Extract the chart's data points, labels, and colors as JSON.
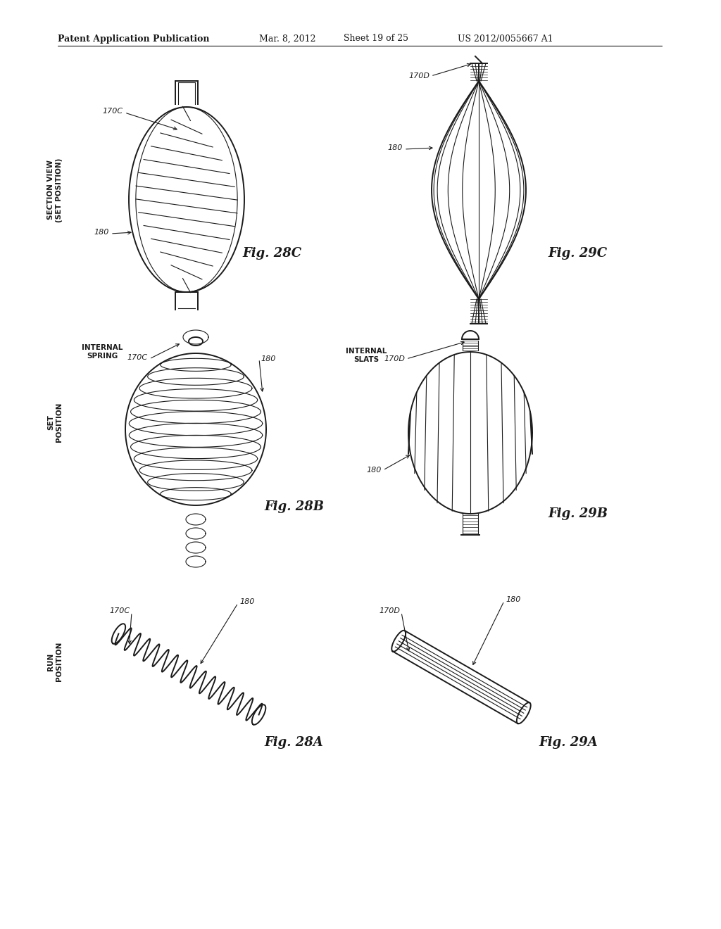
{
  "bg_color": "#ffffff",
  "line_color": "#1a1a1a",
  "header_text": "Patent Application Publication",
  "header_date": "Mar. 8, 2012",
  "header_sheet": "Sheet 19 of 25",
  "header_patent": "US 2012/0055667 A1",
  "fig_28C_label": "Fig. 28C",
  "fig_28B_label": "Fig. 28B",
  "fig_28A_label": "Fig. 28A",
  "fig_29C_label": "Fig. 29C",
  "fig_29B_label": "Fig. 29B",
  "fig_29A_label": "Fig. 29A",
  "label_section_view": "SECTION VIEW\n(SET POSITION)",
  "label_set_position": "SET\nPOSITION",
  "label_run_position": "RUN\nPOSITION",
  "label_internal_spring": "INTERNAL\nSPRING",
  "label_internal_slats": "INTERNAL\nSLATS"
}
